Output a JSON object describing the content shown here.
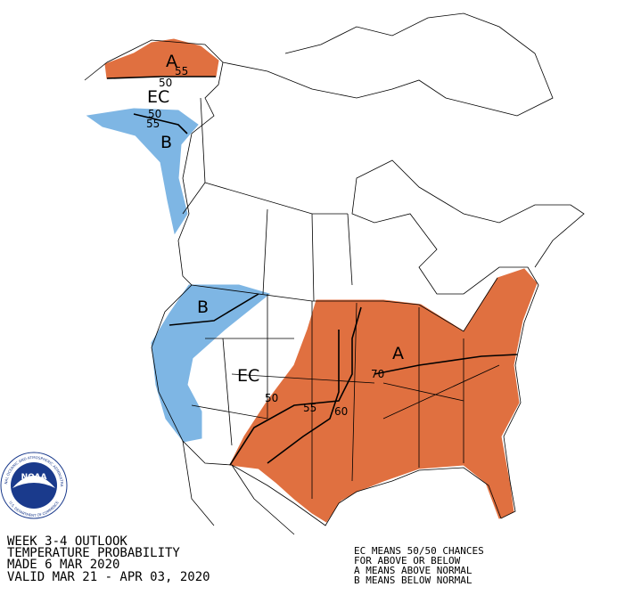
{
  "title_lines": [
    "WEEK 3-4 OUTLOOK",
    "TEMPERATURE PROBABILITY",
    "MADE  6 MAR 2020",
    "VALID  MAR 21 - APR 03, 2020"
  ],
  "legend_lines": [
    "EC MEANS 50/50 CHANCES",
    "FOR ABOVE OR BELOW",
    "A MEANS ABOVE NORMAL",
    "B MEANS BELOW NORMAL"
  ],
  "region_labels": [
    "A",
    "EC",
    "B",
    "B",
    "EC",
    "A"
  ],
  "contour_labels": [
    55,
    50,
    50,
    55,
    50,
    55,
    60,
    70
  ],
  "logo": {
    "name": "NOAA",
    "ring_top": "NATIONAL OCEANIC AND ATMOSPHERIC ADMINISTRATION",
    "ring_bottom": "U.S. DEPARTMENT OF COMMERCE"
  }
}
